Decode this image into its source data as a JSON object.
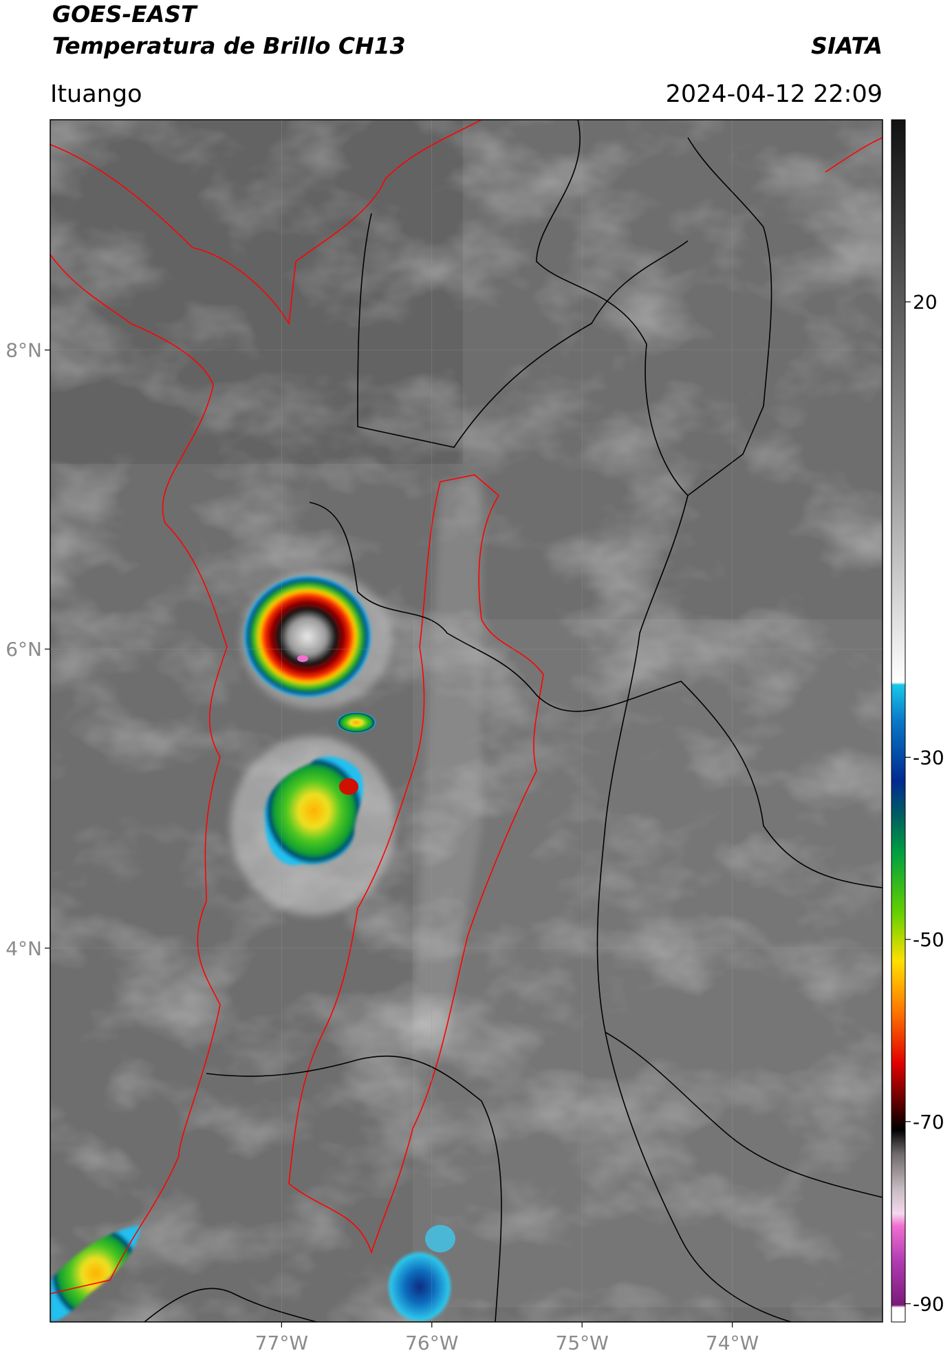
{
  "header": {
    "title": "GOES-EAST",
    "subtitle": "Temperatura de Brillo CH13",
    "source": "SIATA",
    "location": "Ituango",
    "datetime": "2024-04-12 22:09"
  },
  "map": {
    "lon_range": [
      -78.54,
      -73.0
    ],
    "lat_range": [
      1.5,
      9.54
    ],
    "xticks": [
      {
        "value": -77,
        "label": "77°W"
      },
      {
        "value": -76,
        "label": "76°W"
      },
      {
        "value": -75,
        "label": "75°W"
      },
      {
        "value": -74,
        "label": "74°W"
      }
    ],
    "yticks": [
      {
        "value": 8,
        "label": "8°N"
      },
      {
        "value": 6,
        "label": "6°N"
      },
      {
        "value": 4,
        "label": "4°N"
      }
    ]
  },
  "colorbar": {
    "range": [
      -92,
      40
    ],
    "ticks": [
      20,
      -30,
      -50,
      -70,
      -90
    ]
  }
}
